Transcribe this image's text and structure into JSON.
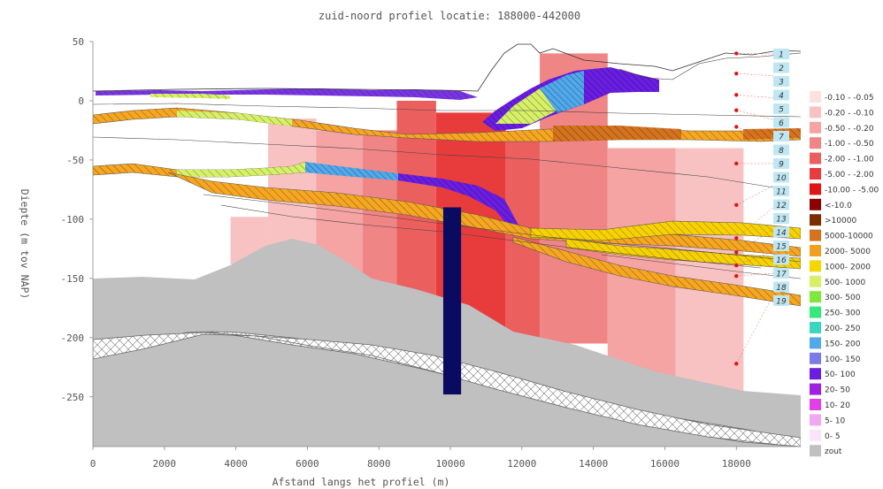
{
  "chart_data": {
    "type": "heatmap",
    "title": "zuid-noord profiel locatie: 188000-442000",
    "xlabel": "Afstand langs het profiel (m)",
    "ylabel": "Diepte (m tov NAP)",
    "xlim": [
      0,
      19800
    ],
    "ylim": [
      -292,
      50
    ],
    "xticks": [
      0,
      2000,
      4000,
      6000,
      8000,
      10000,
      12000,
      14000,
      16000,
      18000
    ],
    "yticks": [
      50,
      0,
      -50,
      -100,
      -150,
      -200,
      -250
    ],
    "grid": false,
    "legend_position": "right",
    "layer_numbers": [
      "1",
      "2",
      "3",
      "4",
      "5",
      "6",
      "7",
      "8",
      "9",
      "10",
      "11",
      "12",
      "13",
      "14",
      "15",
      "16",
      "17",
      "18",
      "19"
    ],
    "legend": [
      {
        "label": "-0.10 - -0.05",
        "color": "#fde0e0"
      },
      {
        "label": "-0.20 - -0.10",
        "color": "#f9c2c2"
      },
      {
        "label": "-0.50 - -0.20",
        "color": "#f5a3a3"
      },
      {
        "label": "-1.00 - -0.50",
        "color": "#f08585"
      },
      {
        "label": "-2.00 - -1.00",
        "color": "#ec5f5f"
      },
      {
        "label": "-5.00 - -2.00",
        "color": "#e83c3c"
      },
      {
        "label": "-10.00 - -5.00",
        "color": "#e01515"
      },
      {
        "label": "<-10.0",
        "color": "#8b0000"
      },
      {
        "label": ">10000",
        "color": "#7a2d00"
      },
      {
        "label": "5000-10000",
        "color": "#d4731f"
      },
      {
        "label": "2000- 5000",
        "color": "#f0a020"
      },
      {
        "label": "1000- 2000",
        "color": "#f5d600"
      },
      {
        "label": "500- 1000",
        "color": "#d8ef6a"
      },
      {
        "label": "300- 500",
        "color": "#7fe83a"
      },
      {
        "label": "250- 300",
        "color": "#35e87a"
      },
      {
        "label": "200- 250",
        "color": "#3ad6c0"
      },
      {
        "label": "150- 200",
        "color": "#52a8e8"
      },
      {
        "label": "100- 150",
        "color": "#7a7ae8"
      },
      {
        "label": "50- 100",
        "color": "#6a1ee0"
      },
      {
        "label": "20- 50",
        "color": "#a020e0"
      },
      {
        "label": "10- 20",
        "color": "#e040e8"
      },
      {
        "label": "5- 10",
        "color": "#f0a8f0"
      },
      {
        "label": "0- 5",
        "color": "#fbe4fb"
      },
      {
        "label": "zout",
        "color": "#c0c0c0"
      }
    ],
    "drawdown_columns": [
      {
        "x0": 3850,
        "x1": 4900,
        "top": -98,
        "bottom": -138,
        "color": "#f9c2c2"
      },
      {
        "x0": 4900,
        "x1": 6250,
        "top": -15,
        "bottom": -150,
        "color": "#f9c2c2"
      },
      {
        "x0": 6250,
        "x1": 7550,
        "top": -25,
        "bottom": -155,
        "color": "#f5a3a3"
      },
      {
        "x0": 7550,
        "x1": 8500,
        "top": -25,
        "bottom": -168,
        "color": "#f08585"
      },
      {
        "x0": 8500,
        "x1": 9600,
        "top": 0,
        "bottom": -180,
        "color": "#ec5f5f"
      },
      {
        "x0": 9600,
        "x1": 11550,
        "top": -10,
        "bottom": -195,
        "color": "#e83c3c"
      },
      {
        "x0": 11550,
        "x1": 12500,
        "top": -30,
        "bottom": -200,
        "color": "#ec5f5f"
      },
      {
        "x0": 12500,
        "x1": 14400,
        "top": 40,
        "bottom": -205,
        "color": "#f08585"
      },
      {
        "x0": 14400,
        "x1": 16300,
        "top": -40,
        "bottom": -235,
        "color": "#f5a3a3"
      },
      {
        "x0": 16300,
        "x1": 18200,
        "top": -40,
        "bottom": -245,
        "color": "#f9c2c2"
      }
    ],
    "well_screen": {
      "x0": 9800,
      "x1": 10300,
      "top": -90,
      "bottom": -248,
      "color": "#0a0a60"
    },
    "observation_points": [
      {
        "x": 18000,
        "y": 40
      },
      {
        "x": 18000,
        "y": 23
      },
      {
        "x": 18000,
        "y": 5
      },
      {
        "x": 18000,
        "y": -8
      },
      {
        "x": 18000,
        "y": -22
      },
      {
        "x": 18000,
        "y": -53
      },
      {
        "x": 18000,
        "y": -88
      },
      {
        "x": 18000,
        "y": -116
      },
      {
        "x": 18000,
        "y": -128
      },
      {
        "x": 18000,
        "y": -139
      },
      {
        "x": 18000,
        "y": -148
      },
      {
        "x": 18000,
        "y": -222
      }
    ]
  }
}
